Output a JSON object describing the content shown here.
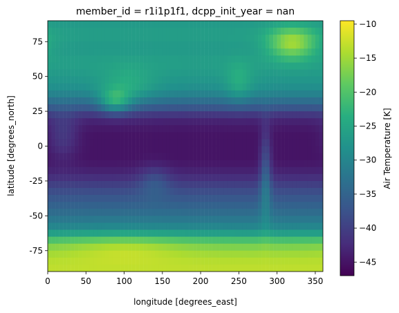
{
  "chart_data": {
    "type": "heatmap",
    "title": "member_id = r1i1p1f1, dcpp_init_year = nan",
    "xlabel": "longitude [degrees_east]",
    "ylabel": "latitude [degrees_north]",
    "colorbar_label": "Air Temperature [K]",
    "xlim": [
      0,
      360
    ],
    "ylim": [
      -90,
      90
    ],
    "xticks": [
      0,
      50,
      100,
      150,
      200,
      250,
      300,
      350
    ],
    "yticks": [
      -75,
      -50,
      -25,
      0,
      25,
      50,
      75
    ],
    "colorbar_range": [
      -47,
      -9.5
    ],
    "colorbar_ticks": [
      -45,
      -40,
      -35,
      -30,
      -25,
      -20,
      -15,
      -10
    ],
    "colormap": "viridis",
    "grid": false,
    "field_description": "upper-air temperature field: coldest (about -45) in the tropical band near the equator, warmer (about -25 to -10) toward the poles; warm maxima over Antarctica and Greenland, warm patches over the Tibetan plateau and the Andes; land outlines faintly visible",
    "approx_zonal_profile": {
      "lat": [
        -90,
        -80,
        -70,
        -60,
        -50,
        -40,
        -30,
        -20,
        -10,
        0,
        10,
        20,
        30,
        40,
        50,
        60,
        70,
        80,
        90
      ],
      "value": [
        -13,
        -14,
        -18,
        -29,
        -33,
        -36,
        -39,
        -43,
        -45,
        -45,
        -45,
        -43,
        -35,
        -29,
        -27,
        -26,
        -27,
        -26,
        -27
      ]
    }
  }
}
